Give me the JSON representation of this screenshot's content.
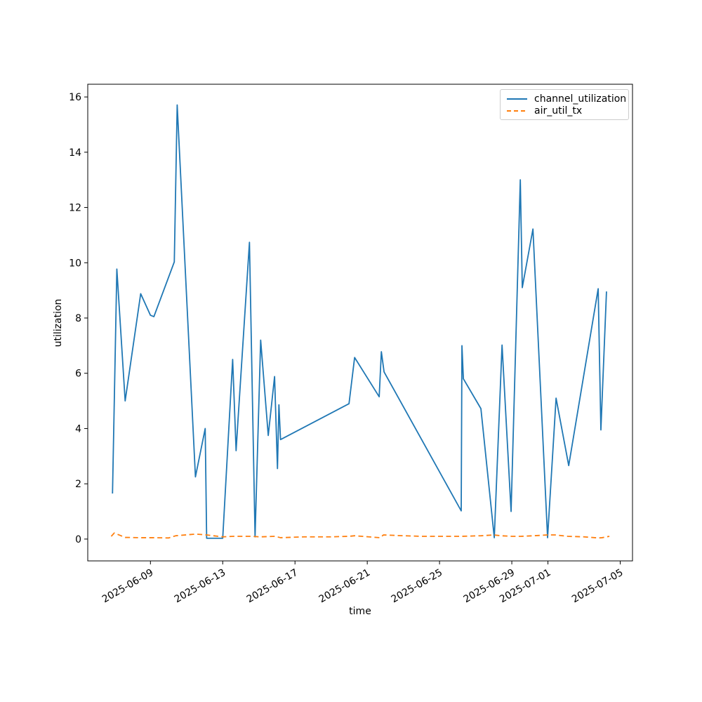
{
  "figure": {
    "background_color": "#ffffff"
  },
  "chart_data": {
    "type": "line",
    "title": "",
    "xlabel": "time",
    "ylabel": "utilization",
    "x_unit": "day-of-month in June 2025 as decimal; values above 30 are July (e.g. 34.24 = 2025-07-04 ~06:00)",
    "xlim": [
      5.53,
      35.68
    ],
    "ylim": [
      -0.79,
      16.46
    ],
    "grid": false,
    "axis_color": "#000000",
    "yticks": [
      0,
      2,
      4,
      6,
      8,
      10,
      12,
      14,
      16
    ],
    "xticks": {
      "positions": [
        9,
        13,
        17,
        21,
        25,
        29,
        31,
        35
      ],
      "labels": [
        "2025-06-09",
        "2025-06-13",
        "2025-06-17",
        "2025-06-21",
        "2025-06-25",
        "2025-06-29",
        "2025-07-01",
        "2025-07-05"
      ],
      "rotation_deg": 30
    },
    "legend": {
      "position": "upper right",
      "border_color": "#cccccc"
    },
    "series": [
      {
        "name": "channel_utilization",
        "color": "#1f77b4",
        "line_style": "solid",
        "x": [
          6.9,
          7.14,
          7.6,
          8.46,
          9.0,
          9.19,
          10.32,
          10.48,
          11.49,
          12.03,
          12.11,
          13.0,
          13.55,
          13.74,
          13.85,
          14.48,
          14.79,
          15.1,
          15.52,
          15.87,
          16.03,
          16.11,
          16.2,
          19.99,
          20.3,
          21.66,
          21.78,
          21.93,
          26.2,
          26.24,
          26.32,
          27.29,
          28.03,
          28.46,
          28.96,
          29.47,
          29.58,
          30.17,
          30.98,
          31.45,
          32.15,
          33.78,
          33.93,
          34.24
        ],
        "y": [
          1.65,
          9.77,
          5.0,
          8.88,
          8.1,
          8.05,
          10.03,
          15.71,
          2.25,
          4.0,
          0.03,
          0.03,
          6.5,
          3.2,
          4.35,
          10.74,
          0.08,
          7.2,
          3.75,
          5.88,
          2.55,
          4.86,
          3.6,
          4.9,
          6.57,
          5.15,
          6.78,
          6.05,
          1.02,
          7.0,
          5.8,
          4.72,
          0.05,
          7.02,
          1.0,
          13.0,
          9.1,
          11.22,
          0.05,
          5.1,
          2.66,
          9.06,
          3.95,
          8.96
        ]
      },
      {
        "name": "air_util_tx",
        "color": "#ff7f0e",
        "line_style": "dashed",
        "x": [
          6.83,
          7.0,
          7.6,
          8.5,
          9.2,
          10.0,
          10.4,
          11.5,
          12.1,
          13.0,
          13.6,
          14.5,
          15.1,
          15.9,
          16.2,
          17.5,
          19.0,
          20.0,
          20.3,
          21.7,
          21.9,
          23.0,
          24.0,
          25.0,
          26.2,
          27.3,
          28.0,
          28.4,
          29.0,
          29.5,
          30.2,
          31.0,
          31.4,
          32.1,
          33.0,
          33.8,
          34.0,
          34.4
        ],
        "y": [
          0.1,
          0.22,
          0.06,
          0.05,
          0.05,
          0.04,
          0.12,
          0.18,
          0.15,
          0.08,
          0.1,
          0.1,
          0.08,
          0.1,
          0.05,
          0.08,
          0.08,
          0.1,
          0.12,
          0.05,
          0.15,
          0.12,
          0.1,
          0.1,
          0.1,
          0.12,
          0.15,
          0.12,
          0.1,
          0.1,
          0.12,
          0.15,
          0.15,
          0.1,
          0.08,
          0.04,
          0.05,
          0.1
        ]
      }
    ]
  }
}
